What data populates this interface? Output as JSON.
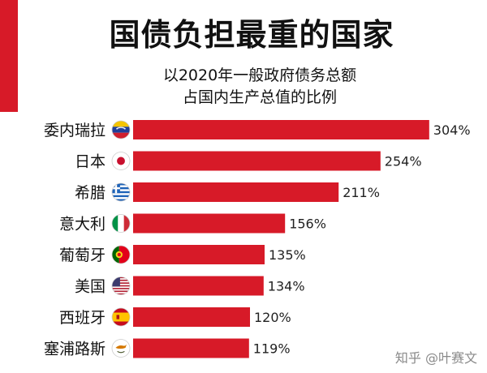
{
  "title": "国债负担最重的国家",
  "subtitle": {
    "line1": "以2020年一般政府债务总额",
    "line2": "占国内生产总值的比例"
  },
  "colors": {
    "bar": "#d71a28",
    "accent": "#d71a28"
  },
  "watermark": "知乎 @叶赛文",
  "chart_data": {
    "type": "bar",
    "orientation": "horizontal",
    "categories": [
      "委内瑞拉",
      "日本",
      "希腊",
      "意大利",
      "葡萄牙",
      "美国",
      "西班牙",
      "塞浦路斯"
    ],
    "values": [
      304,
      254,
      211,
      156,
      135,
      134,
      120,
      119
    ],
    "value_labels": [
      "304%",
      "254%",
      "211%",
      "156%",
      "135%",
      "134%",
      "120%",
      "119%"
    ],
    "flags": [
      "venezuela-flag",
      "japan-flag",
      "greece-flag",
      "italy-flag",
      "portugal-flag",
      "usa-flag",
      "spain-flag",
      "cyprus-flag"
    ],
    "unit": "%",
    "grid": false,
    "legend": "none"
  }
}
